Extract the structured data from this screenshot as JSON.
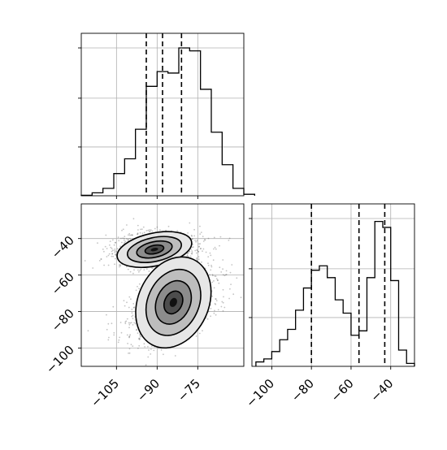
{
  "chart_data": [
    {
      "type": "histogram",
      "panel": "marginal-x",
      "bins": [
        -118,
        -114,
        -110,
        -106,
        -102,
        -98,
        -94,
        -90,
        -86,
        -82,
        -78,
        -74,
        -70,
        -66,
        -62,
        -58,
        -54
      ],
      "counts": [
        0.003,
        0.02,
        0.05,
        0.15,
        0.25,
        0.45,
        0.74,
        0.84,
        0.83,
        1.0,
        0.98,
        0.72,
        0.43,
        0.21,
        0.05,
        0.01
      ],
      "quantiles": [
        -94,
        -88,
        -81
      ],
      "xlim": [
        -118,
        -58
      ],
      "grid": true
    },
    {
      "type": "histogram",
      "panel": "marginal-y",
      "bins": [
        -108,
        -104,
        -100,
        -96,
        -92,
        -88,
        -84,
        -80,
        -76,
        -72,
        -68,
        -64,
        -60,
        -56,
        -52,
        -48,
        -44,
        -40,
        -36,
        -32,
        -28
      ],
      "counts": [
        0.03,
        0.05,
        0.1,
        0.18,
        0.25,
        0.38,
        0.53,
        0.65,
        0.68,
        0.6,
        0.45,
        0.36,
        0.21,
        0.24,
        0.6,
        0.98,
        0.94,
        0.58,
        0.11,
        0.02
      ],
      "quantiles": [
        -80,
        -56,
        -43
      ],
      "xlim": [
        -110,
        -28
      ],
      "x_ticks": [
        -100,
        -80,
        -60,
        -40
      ],
      "grid": true
    },
    {
      "type": "contour-scatter",
      "panel": "joint",
      "x_ticks": [
        -105,
        -90,
        -75
      ],
      "y_ticks": [
        -40,
        -60,
        -80,
        -100
      ],
      "xlim": [
        -118,
        -58
      ],
      "ylim": [
        -110,
        -21
      ],
      "clusters": [
        {
          "center": [
            -91,
            -46
          ],
          "spread": [
            7,
            4.5
          ],
          "tilt": -12
        },
        {
          "center": [
            -84,
            -75
          ],
          "spread": [
            6.5,
            13
          ],
          "tilt": 25
        }
      ],
      "grid": true
    }
  ]
}
